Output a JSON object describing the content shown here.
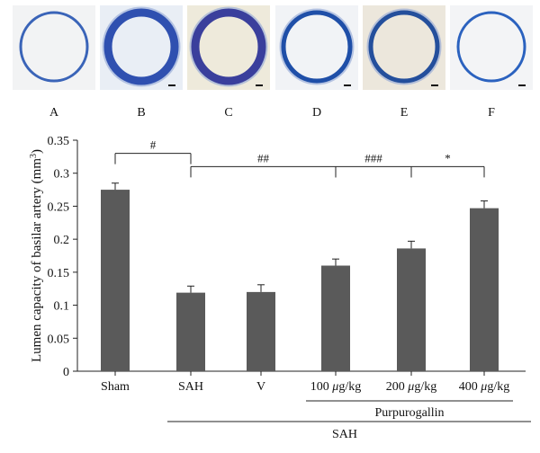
{
  "panels": [
    {
      "label": "A",
      "background": "#f2f3f4",
      "ring_color": "#3a64b8",
      "wall": "thin"
    },
    {
      "label": "B",
      "background": "#e9eef5",
      "ring_color": "#2f50b0",
      "wall": "thick"
    },
    {
      "label": "C",
      "background": "#eeeadb",
      "ring_color": "#3a3f9c",
      "wall": "thick"
    },
    {
      "label": "D",
      "background": "#f1f3f6",
      "ring_color": "#1f4fa8",
      "wall": "medium"
    },
    {
      "label": "E",
      "background": "#ece7dc",
      "ring_color": "#244f9c",
      "wall": "medium"
    },
    {
      "label": "F",
      "background": "#f3f4f6",
      "ring_color": "#2b62bf",
      "wall": "thin"
    }
  ],
  "chart_data": {
    "type": "bar",
    "ylabel": "Lumen capacity of basilar artery (mm",
    "ylabel_sup": "3",
    "ylabel_close": ")",
    "ylim": [
      0,
      0.35
    ],
    "yticks": [
      "0",
      "0.05",
      "0.1",
      "0.15",
      "0.2",
      "0.25",
      "0.3",
      "0.35"
    ],
    "categories": [
      "Sham",
      "SAH",
      "V",
      "100 μg/kg",
      "200 μg/kg",
      "400 μg/kg"
    ],
    "values": [
      0.275,
      0.119,
      0.12,
      0.16,
      0.186,
      0.247
    ],
    "errors": [
      0.01,
      0.01,
      0.011,
      0.01,
      0.011,
      0.011
    ],
    "bar_color": "#5a5a5a",
    "significance": [
      {
        "label": "#",
        "from": 0,
        "to": 1,
        "level": 0.33
      },
      {
        "label": "##",
        "from": 1,
        "to": 3,
        "level": 0.31
      },
      {
        "label": "###",
        "from": 3,
        "to": 4,
        "level": 0.31
      },
      {
        "label": "*",
        "from": 4,
        "to": 5,
        "level": 0.31
      }
    ],
    "group_labels": {
      "purpurogallin": "Purpurogallin",
      "sah": "SAH"
    }
  }
}
